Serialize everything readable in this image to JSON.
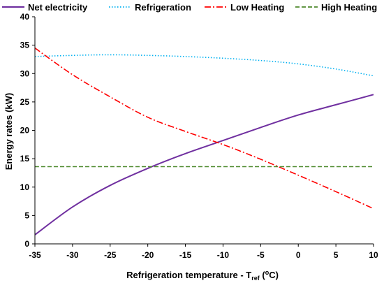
{
  "chart_data": {
    "type": "line",
    "xlabel": {
      "text": "Refrigeration temperature - T",
      "subscript": "ref",
      "unit_open": " (",
      "superscript": "o",
      "unit_close": "C)"
    },
    "ylabel": "Energy rates (kW)",
    "xlim": [
      -35,
      10
    ],
    "ylim": [
      0,
      40
    ],
    "x_ticks": [
      -35,
      -30,
      -25,
      -20,
      -15,
      -10,
      -5,
      0,
      5,
      10
    ],
    "y_ticks": [
      0,
      5,
      10,
      15,
      20,
      25,
      30,
      35,
      40
    ],
    "grid": false,
    "legend_position": "top",
    "x": [
      -35,
      -30,
      -25,
      -20,
      -15,
      -10,
      -5,
      0,
      5,
      10
    ],
    "series": [
      {
        "name": "Net electricity",
        "color": "#7030a0",
        "dash": "solid",
        "values": [
          1.6,
          6.5,
          10.3,
          13.3,
          15.9,
          18.2,
          20.5,
          22.7,
          24.5,
          26.3
        ]
      },
      {
        "name": "Refrigeration",
        "color": "#00b0f0",
        "dash": "dotted",
        "values": [
          33.0,
          33.2,
          33.3,
          33.2,
          33.0,
          32.7,
          32.3,
          31.7,
          30.8,
          29.6
        ]
      },
      {
        "name": "Low Heating",
        "color": "#ff0000",
        "dash": "dashdot",
        "values": [
          34.5,
          29.8,
          25.9,
          22.3,
          19.8,
          17.5,
          14.9,
          12.1,
          9.2,
          6.2
        ]
      },
      {
        "name": "High Heating",
        "color": "#4e8a2d",
        "dash": "dashed",
        "values": [
          13.6,
          13.6,
          13.6,
          13.6,
          13.6,
          13.6,
          13.6,
          13.6,
          13.6,
          13.6
        ]
      }
    ]
  }
}
